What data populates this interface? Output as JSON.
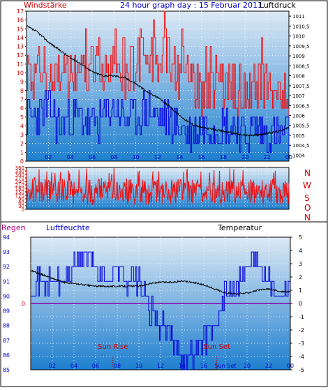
{
  "colors": {
    "wind_gust": "#ee1111",
    "wind_avg": "#0000dd",
    "pressure": "#000000",
    "direction": "#ee1111",
    "humidity": "#0000dd",
    "temperature": "#000000",
    "rain": "#8800aa",
    "sun": "#cc0000",
    "label_red": "#cc0000",
    "label_blue": "#0000cc",
    "panel_top": "#dde9f5",
    "panel_bottom": "#1e7fcf",
    "frame": "#000000"
  },
  "header": {
    "left": "Windstärke",
    "center": "24 hour graph day : 15 Februar 2011",
    "right": "Luftdruck"
  },
  "dir_labels": [
    "N",
    "W",
    "S",
    "O",
    "N"
  ],
  "bottom_header": {
    "rain": "Regen",
    "humidity": "Luftfeuchte",
    "temperature": "Temperatur"
  },
  "sun": {
    "rise_label": "Sun Rise",
    "set_label": "Sun Set",
    "rise_hour": 7.6,
    "set_hour": 17.2,
    "axis_label": "Sun Set"
  },
  "chart_data": [
    {
      "type": "line",
      "name": "wind-pressure",
      "xticks": [
        "02",
        "04",
        "06",
        "08",
        "10",
        "12",
        "14",
        "16",
        "18",
        "20",
        "22",
        "00"
      ],
      "xlim": [
        0,
        24
      ],
      "ylim": [
        0,
        17
      ],
      "yticks": [
        "0",
        "1",
        "2",
        "3",
        "4",
        "5",
        "6",
        "7",
        "8",
        "9",
        "10",
        "11",
        "12",
        "13",
        "14",
        "15",
        "16",
        "17"
      ],
      "y2lim": [
        1003.7,
        1011.25
      ],
      "y2ticks": [
        "1004",
        "1004,5",
        "1005",
        "1005,5",
        "1006",
        "1006,5",
        "1007",
        "1007,5",
        "1008",
        "1008,5",
        "1009",
        "1009,5",
        "1010",
        "1010,5",
        "1011"
      ],
      "series": [
        {
          "key": "gust",
          "x": [
            0,
            1,
            2,
            3,
            4,
            5,
            6,
            7,
            8,
            9,
            10,
            11,
            12,
            12.6,
            13,
            14,
            15,
            16,
            17,
            18,
            19,
            20,
            21,
            22,
            23,
            24
          ],
          "values": [
            12,
            13,
            13,
            12,
            13,
            14,
            13,
            13,
            14,
            13,
            14,
            15,
            14,
            17,
            14,
            13,
            12,
            11,
            12,
            12,
            11,
            11,
            12,
            12,
            10,
            9
          ]
        },
        {
          "key": "avg",
          "x": [
            0,
            1,
            2,
            3,
            4,
            5,
            6,
            7,
            8,
            9,
            10,
            11,
            12,
            13,
            14,
            15,
            16,
            17,
            18,
            19,
            20,
            21,
            22,
            23,
            24
          ],
          "values": [
            5,
            5,
            6,
            4,
            5,
            5,
            4,
            5,
            6,
            5,
            5,
            6,
            5,
            5,
            4,
            3,
            4,
            4,
            4,
            4,
            3,
            4,
            3,
            3,
            3
          ]
        },
        {
          "key": "pressure",
          "x": [
            0,
            1,
            2,
            3,
            4,
            5,
            6,
            7,
            8,
            9,
            10,
            11,
            12,
            13,
            14,
            15,
            16,
            17,
            18,
            19,
            20,
            21,
            22,
            23,
            24
          ],
          "values": [
            1010.5,
            1010.2,
            1009.7,
            1009.3,
            1008.9,
            1008.6,
            1008.2,
            1008.0,
            1008.0,
            1007.9,
            1007.6,
            1007.2,
            1006.9,
            1006.5,
            1006.0,
            1005.6,
            1005.4,
            1005.3,
            1005.2,
            1005.1,
            1005.0,
            1005.0,
            1005.1,
            1005.2,
            1005.4
          ]
        }
      ]
    },
    {
      "type": "line",
      "name": "wind-direction",
      "xlim": [
        0,
        24
      ],
      "ylim": [
        0,
        360
      ],
      "yticks": [
        "0",
        "30",
        "60",
        "90",
        "120",
        "150",
        "180",
        "210",
        "240",
        "270",
        "300",
        "330",
        "360"
      ],
      "series": [
        {
          "key": "direction",
          "x": [
            0,
            1,
            2,
            3,
            4,
            5,
            6,
            7,
            8,
            9,
            10,
            11,
            12,
            13,
            14,
            15,
            16,
            17,
            18,
            19,
            20,
            21,
            22,
            23,
            24
          ],
          "values": [
            150,
            170,
            140,
            160,
            150,
            155,
            145,
            165,
            150,
            160,
            140,
            150,
            160,
            150,
            155,
            145,
            160,
            150,
            155,
            150,
            160,
            150,
            145,
            155,
            150
          ]
        }
      ]
    },
    {
      "type": "line",
      "name": "rain-humidity-temperature",
      "xticks": [
        "02",
        "04",
        "06",
        "08",
        "10",
        "12",
        "14",
        "16",
        "Sun Set",
        "20",
        "22",
        "00"
      ],
      "xlim": [
        0,
        24
      ],
      "ylim": [
        85,
        94
      ],
      "yticks": [
        "85",
        "86",
        "87",
        "88",
        "89",
        "90",
        "91",
        "92",
        "93",
        "94"
      ],
      "y2lim": [
        -5,
        5
      ],
      "y2ticks": [
        "-5",
        "-4",
        "-3",
        "-2",
        "-1",
        "0",
        "1",
        "2",
        "3",
        "4",
        "5"
      ],
      "rain_value": 0,
      "series": [
        {
          "key": "humidity",
          "x": [
            0,
            1,
            2,
            3,
            4,
            5,
            6,
            7,
            8,
            9,
            10,
            11,
            12,
            13,
            14,
            15,
            16,
            17,
            18,
            19,
            20,
            21,
            22,
            23,
            24
          ],
          "values": [
            91,
            91,
            91,
            91,
            92,
            93,
            92,
            91,
            92,
            91,
            91,
            89,
            88,
            87,
            86,
            86,
            87,
            88,
            90,
            91,
            92,
            93,
            91,
            90,
            91
          ]
        },
        {
          "key": "temperature",
          "x": [
            0,
            1,
            2,
            3,
            4,
            5,
            6,
            7,
            8,
            9,
            10,
            11,
            12,
            13,
            14,
            15,
            16,
            17,
            18,
            19,
            20,
            21,
            22,
            23,
            24
          ],
          "values": [
            2.5,
            2.2,
            1.9,
            1.6,
            1.5,
            1.4,
            1.3,
            1.3,
            1.3,
            1.3,
            1.3,
            1.5,
            1.6,
            1.6,
            1.7,
            1.6,
            1.4,
            1.1,
            0.8,
            0.7,
            0.8,
            1.0,
            1.1,
            0.9,
            0.9
          ]
        }
      ]
    }
  ]
}
